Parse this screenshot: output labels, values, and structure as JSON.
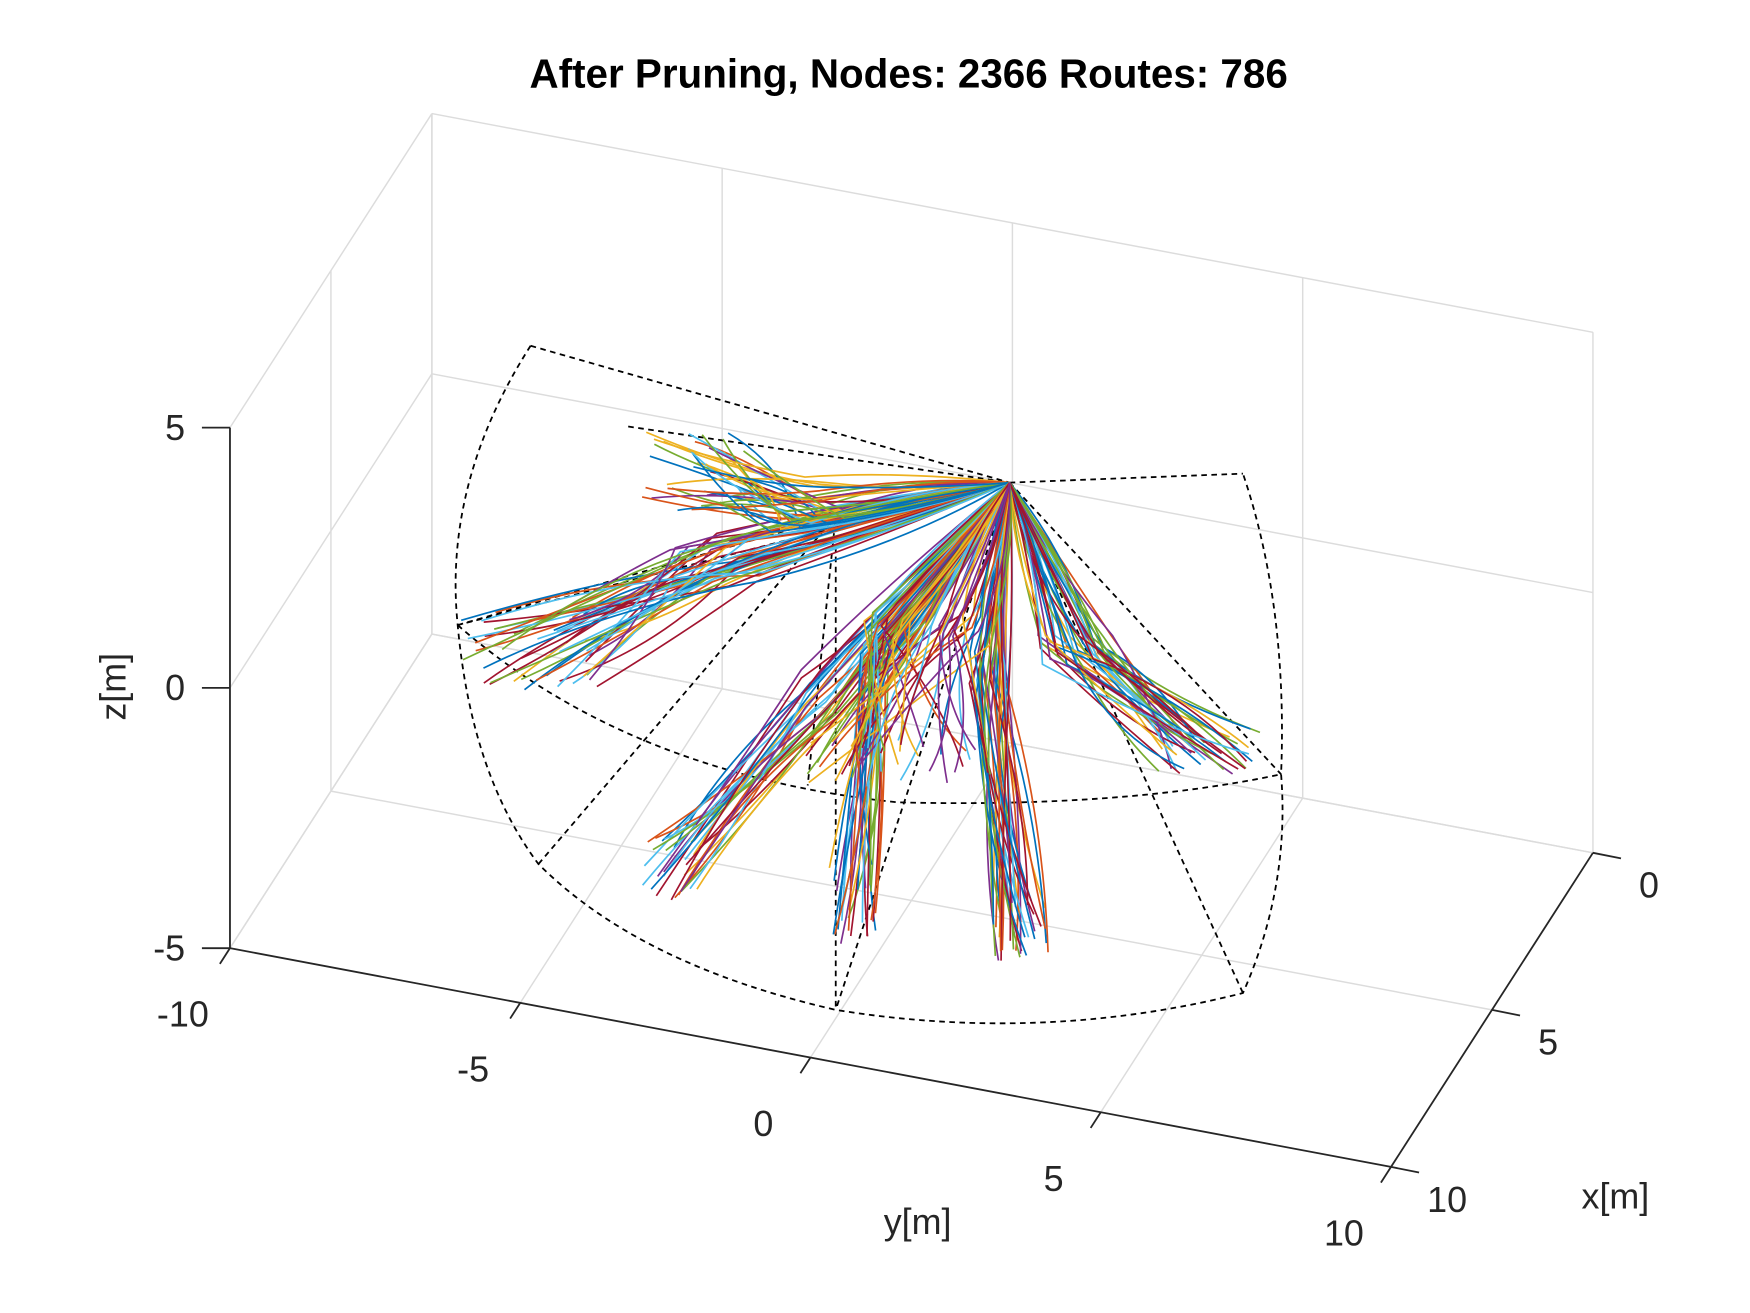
{
  "chart_data": {
    "type": "line3d",
    "title": "After Pruning, Nodes: 2366 Routes: 786",
    "xlabel": "x[m]",
    "ylabel": "y[m]",
    "zlabel": "z[m]",
    "xlim": [
      0,
      10
    ],
    "ylim": [
      -10,
      10
    ],
    "zlim": [
      -5,
      5
    ],
    "xticks": [
      0,
      5,
      10
    ],
    "yticks": [
      -10,
      -5,
      0,
      5,
      10
    ],
    "zticks": [
      -5,
      0,
      5
    ],
    "grid": true
  }
}
